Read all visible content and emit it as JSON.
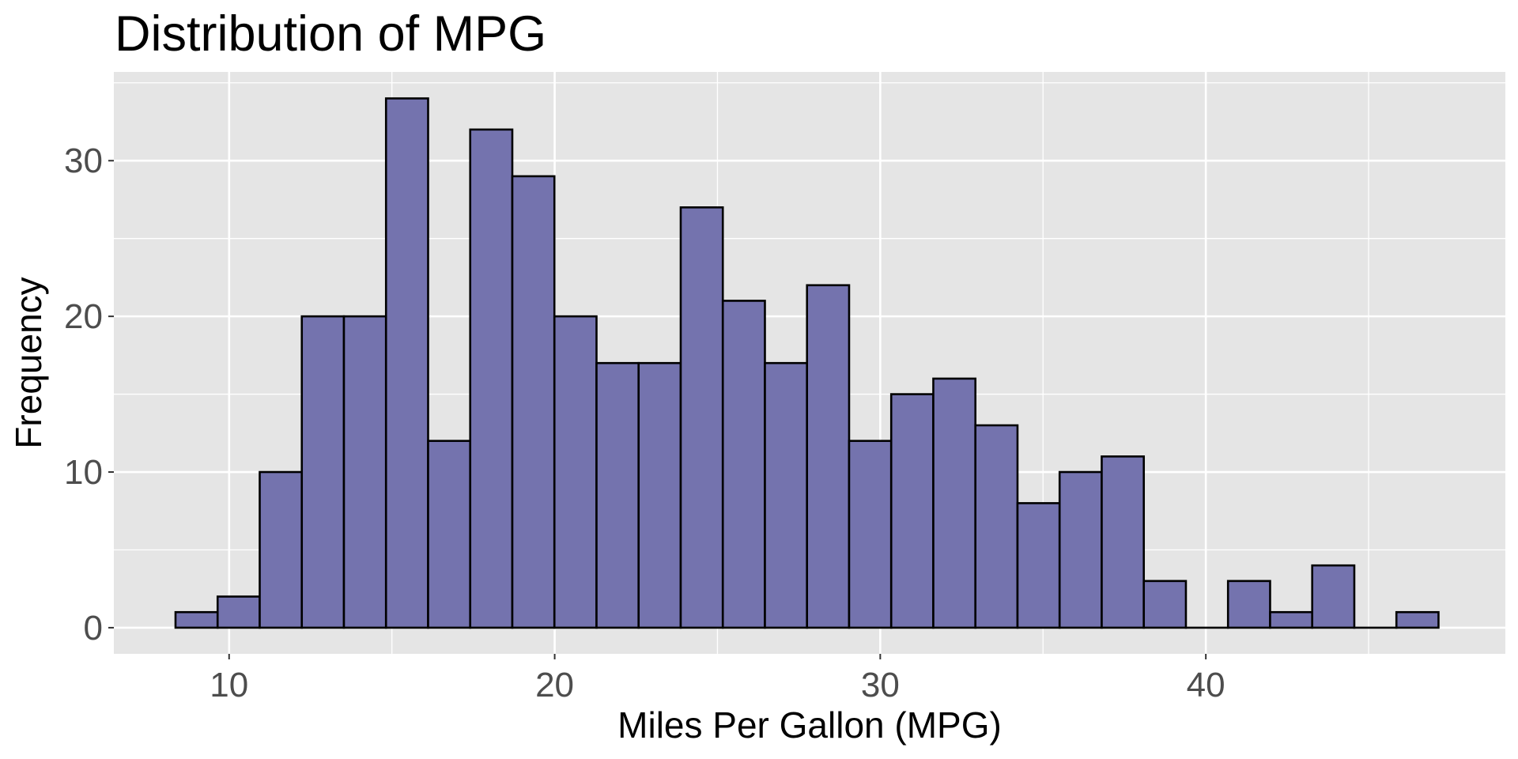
{
  "chart_data": {
    "type": "bar",
    "subtype": "histogram",
    "title": "Distribution of MPG",
    "xlabel": "Miles Per Gallon (MPG)",
    "ylabel": "Frequency",
    "bin_start": 8.354,
    "bin_width": 1.2931,
    "values": [
      1,
      2,
      10,
      20,
      20,
      34,
      12,
      32,
      29,
      20,
      17,
      17,
      27,
      21,
      17,
      22,
      12,
      15,
      16,
      13,
      8,
      10,
      11,
      3,
      0,
      3,
      1,
      4,
      0,
      1
    ],
    "xlim": [
      6.46,
      49.2
    ],
    "ylim": [
      -1.68,
      35.7
    ],
    "xticks": [
      10,
      20,
      30,
      40
    ],
    "xtick_labels": [
      "10",
      "20",
      "30",
      "40"
    ],
    "yticks": [
      0,
      10,
      20,
      30
    ],
    "ytick_labels": [
      "0",
      "10",
      "20",
      "30"
    ],
    "grid": true,
    "colors": {
      "fill": "#7473ae",
      "stroke": "#000000",
      "panel": "#e5e5e5",
      "grid": "#ffffff"
    }
  }
}
